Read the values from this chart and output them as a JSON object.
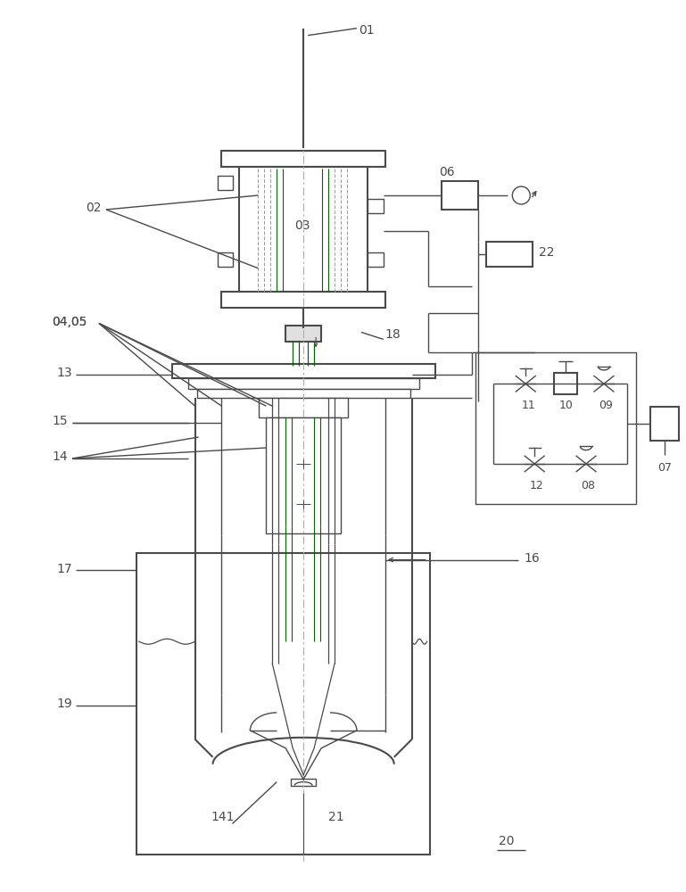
{
  "bg_color": "#ffffff",
  "lc": "#4a4a4a",
  "pc": "#9400D3",
  "gc": "#006400",
  "fig_w": 7.69,
  "fig_h": 10.0,
  "dpi": 100
}
